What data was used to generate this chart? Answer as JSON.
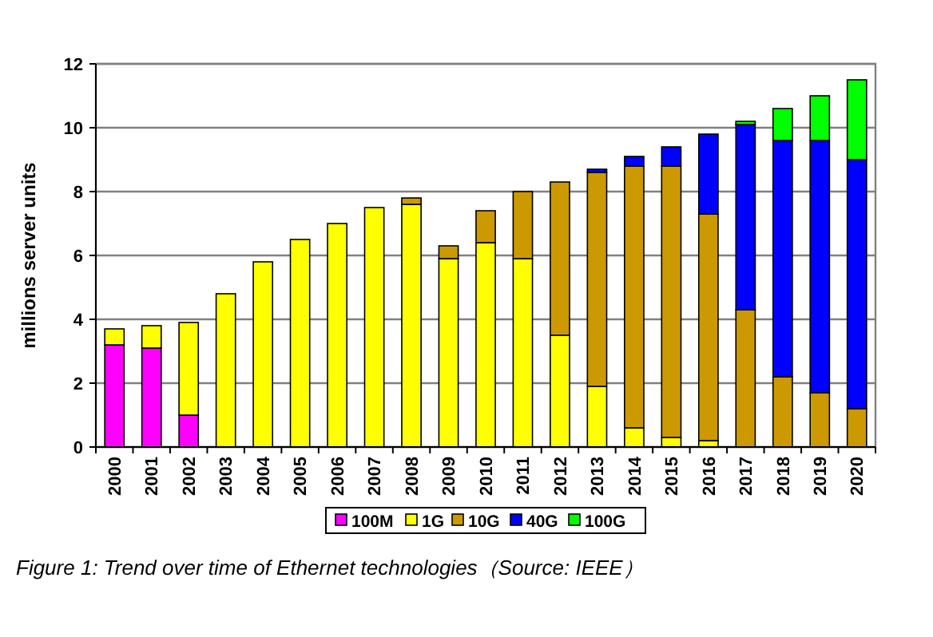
{
  "chart_data": {
    "type": "bar",
    "stacked": true,
    "ylabel": "millions server units",
    "categories": [
      "2000",
      "2001",
      "2002",
      "2003",
      "2004",
      "2005",
      "2006",
      "2007",
      "2008",
      "2009",
      "2010",
      "2011",
      "2012",
      "2013",
      "2014",
      "2015",
      "2016",
      "2017",
      "2018",
      "2019",
      "2020"
    ],
    "series": [
      {
        "name": "100M",
        "color": "#ff00ff",
        "values": [
          3.2,
          3.1,
          1.0,
          null,
          null,
          null,
          null,
          null,
          null,
          null,
          null,
          null,
          null,
          null,
          null,
          null,
          null,
          null,
          null,
          null,
          null
        ]
      },
      {
        "name": "1G",
        "color": "#ffff00",
        "values": [
          0.5,
          0.7,
          2.9,
          4.8,
          5.8,
          6.5,
          7.0,
          7.5,
          7.6,
          5.9,
          6.4,
          5.9,
          3.5,
          1.9,
          0.6,
          0.3,
          0.2,
          null,
          null,
          null,
          null
        ]
      },
      {
        "name": "10G",
        "color": "#cc9900",
        "values": [
          null,
          null,
          null,
          null,
          null,
          null,
          null,
          null,
          0.2,
          0.4,
          1.0,
          2.1,
          4.8,
          6.7,
          8.2,
          8.5,
          7.1,
          4.3,
          2.2,
          1.7,
          1.2
        ]
      },
      {
        "name": "40G",
        "color": "#0000ff",
        "values": [
          null,
          null,
          null,
          null,
          null,
          null,
          null,
          null,
          null,
          null,
          null,
          null,
          null,
          0.1,
          0.3,
          0.6,
          2.5,
          5.8,
          7.4,
          7.9,
          7.8
        ]
      },
      {
        "name": "100G",
        "color": "#00ff00",
        "values": [
          null,
          null,
          null,
          null,
          null,
          null,
          null,
          null,
          null,
          null,
          null,
          null,
          null,
          null,
          null,
          null,
          null,
          0.1,
          1.0,
          1.4,
          2.5
        ]
      }
    ],
    "ylim": [
      0,
      12
    ],
    "yticks": [
      0,
      2,
      4,
      6,
      8,
      10,
      12
    ],
    "grid": "y",
    "legend": "bottom",
    "annotations": [
      "Figure 1: Trend over time of Ethernet technologies（Source: IEEE）"
    ]
  }
}
